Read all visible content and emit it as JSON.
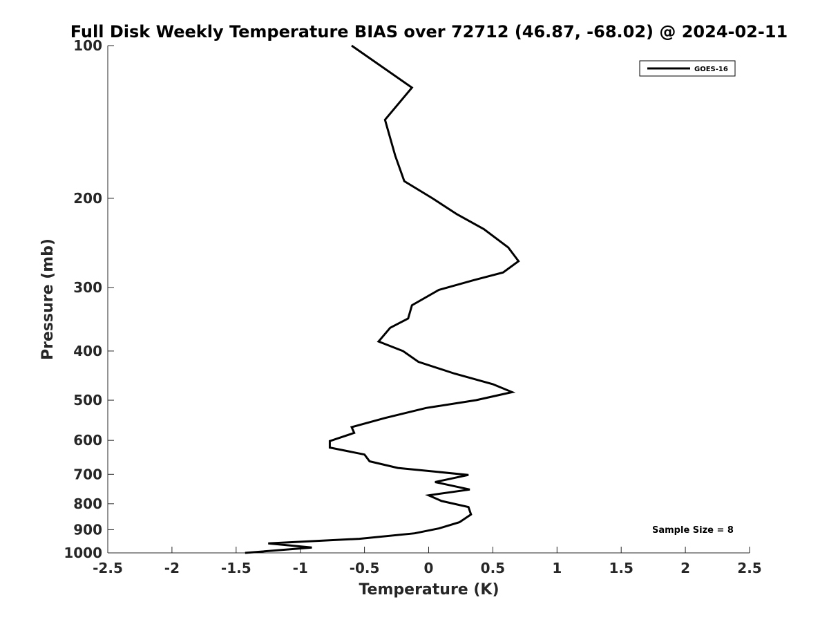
{
  "chart_data": {
    "type": "line",
    "title": "Full Disk Weekly Temperature BIAS over 72712 (46.87, -68.02) @ 2024-02-11",
    "xlabel": "Temperature (K)",
    "ylabel": "Pressure (mb)",
    "xlim": [
      -2.5,
      2.5
    ],
    "ylim": [
      1000,
      100
    ],
    "y_scale": "log",
    "y_reversed": true,
    "x_ticks": [
      "-2.5",
      "-2",
      "-1.5",
      "-1",
      "-0.5",
      "0",
      "0.5",
      "1",
      "1.5",
      "2",
      "2.5"
    ],
    "x_tick_values": [
      -2.5,
      -2,
      -1.5,
      -1,
      -0.5,
      0,
      0.5,
      1,
      1.5,
      2,
      2.5
    ],
    "y_ticks": [
      "100",
      "200",
      "300",
      "400",
      "500",
      "600",
      "700",
      "800",
      "900",
      "1000"
    ],
    "y_tick_values": [
      100,
      200,
      300,
      400,
      500,
      600,
      700,
      800,
      900,
      1000
    ],
    "grid": false,
    "legend_position": "top-right",
    "annotation": "Sample Size = 8",
    "series": [
      {
        "name": "GOES-16",
        "color": "#000000",
        "points": [
          {
            "x": -0.6,
            "y": 100
          },
          {
            "x": -0.13,
            "y": 121
          },
          {
            "x": -0.34,
            "y": 140
          },
          {
            "x": -0.26,
            "y": 165
          },
          {
            "x": -0.19,
            "y": 185
          },
          {
            "x": 0.03,
            "y": 200
          },
          {
            "x": 0.22,
            "y": 215
          },
          {
            "x": 0.43,
            "y": 230
          },
          {
            "x": 0.62,
            "y": 250
          },
          {
            "x": 0.7,
            "y": 266
          },
          {
            "x": 0.58,
            "y": 280
          },
          {
            "x": 0.35,
            "y": 290
          },
          {
            "x": 0.08,
            "y": 303
          },
          {
            "x": -0.13,
            "y": 325
          },
          {
            "x": -0.16,
            "y": 345
          },
          {
            "x": -0.3,
            "y": 360
          },
          {
            "x": -0.39,
            "y": 383
          },
          {
            "x": -0.2,
            "y": 400
          },
          {
            "x": -0.08,
            "y": 420
          },
          {
            "x": 0.2,
            "y": 443
          },
          {
            "x": 0.5,
            "y": 465
          },
          {
            "x": 0.65,
            "y": 482
          },
          {
            "x": 0.37,
            "y": 500
          },
          {
            "x": -0.02,
            "y": 518
          },
          {
            "x": -0.34,
            "y": 542
          },
          {
            "x": -0.6,
            "y": 565
          },
          {
            "x": -0.58,
            "y": 580
          },
          {
            "x": -0.77,
            "y": 602
          },
          {
            "x": -0.77,
            "y": 620
          },
          {
            "x": -0.5,
            "y": 640
          },
          {
            "x": -0.46,
            "y": 660
          },
          {
            "x": -0.24,
            "y": 680
          },
          {
            "x": 0.31,
            "y": 702
          },
          {
            "x": 0.05,
            "y": 725
          },
          {
            "x": 0.32,
            "y": 750
          },
          {
            "x": 0.0,
            "y": 770
          },
          {
            "x": 0.1,
            "y": 790
          },
          {
            "x": 0.31,
            "y": 812
          },
          {
            "x": 0.33,
            "y": 840
          },
          {
            "x": 0.24,
            "y": 870
          },
          {
            "x": 0.08,
            "y": 895
          },
          {
            "x": -0.11,
            "y": 915
          },
          {
            "x": -0.54,
            "y": 938
          },
          {
            "x": -1.25,
            "y": 958
          },
          {
            "x": -0.91,
            "y": 976
          },
          {
            "x": -1.43,
            "y": 1000
          }
        ]
      }
    ]
  }
}
